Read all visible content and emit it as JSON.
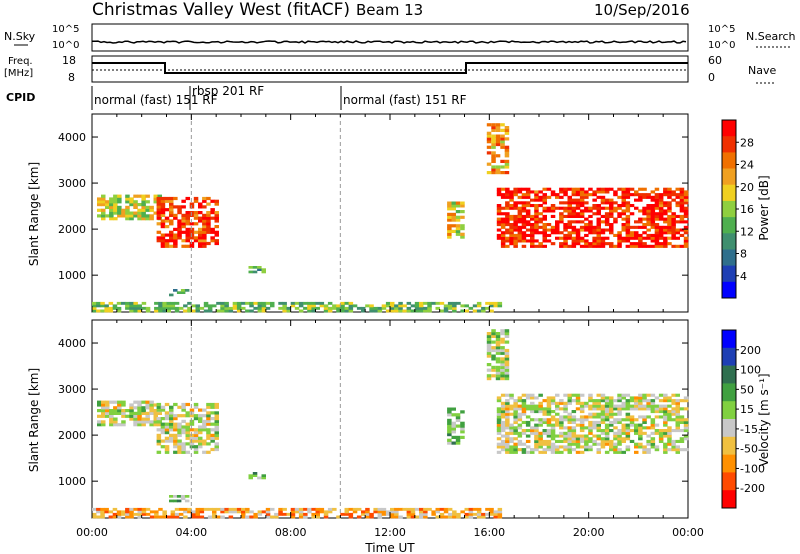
{
  "header": {
    "station": "Christmas Valley West (fitACF)",
    "beam": "Beam 13",
    "date": "10/Sep/2016"
  },
  "noise_panel": {
    "left_label": "N.Sky",
    "right_label": "N.Search",
    "left_ticks": [
      "10^5",
      "10^0"
    ],
    "right_ticks": [
      "10^5",
      "10^0"
    ]
  },
  "freq_panel": {
    "left_label_top": "Freq.",
    "left_label_bottom": "[MHz]",
    "right_label": "Nave",
    "left_ticks": [
      "18",
      "8"
    ],
    "right_ticks": [
      "60",
      "0"
    ]
  },
  "cpid": {
    "label": "CPID",
    "segments": [
      {
        "text": "normal (fast) 151 RF",
        "start_hour": 0
      },
      {
        "text": "rbsp 201 RF",
        "start_hour": 4
      },
      {
        "text": "normal (fast) 151 RF",
        "start_hour": 10
      }
    ]
  },
  "chart_data": [
    {
      "type": "heatmap",
      "name": "power",
      "ylabel": "Slant Range [km]",
      "colorbar_label": "Power [dB]",
      "colorbar_ticks": [
        "28",
        "24",
        "20",
        "16",
        "12",
        "8",
        "4"
      ],
      "colors": [
        "#0000ff",
        "#1e3fb4",
        "#2f6f8c",
        "#3f8f6f",
        "#4faf4f",
        "#8fcf3f",
        "#f0d020",
        "#f0a020",
        "#f07000",
        "#f03000",
        "#ff0000"
      ],
      "xlim_hours": [
        0,
        24
      ],
      "ylim_km": [
        200,
        4500
      ],
      "yticks": [
        1000,
        2000,
        3000,
        4000
      ],
      "regions": [
        {
          "t": [
            0.2,
            2.8
          ],
          "r": [
            2200,
            2750
          ],
          "level": 0.55
        },
        {
          "t": [
            2.6,
            5.1
          ],
          "r": [
            1600,
            2700
          ],
          "level": 0.85
        },
        {
          "t": [
            6.3,
            7.0
          ],
          "r": [
            1050,
            1200
          ],
          "level": 0.4
        },
        {
          "t": [
            3.1,
            3.9
          ],
          "r": [
            550,
            700
          ],
          "level": 0.35
        },
        {
          "t": [
            14.3,
            15.0
          ],
          "r": [
            1800,
            2600
          ],
          "level": 0.6
        },
        {
          "t": [
            15.9,
            16.8
          ],
          "r": [
            3200,
            4300
          ],
          "level": 0.7
        },
        {
          "t": [
            16.3,
            24
          ],
          "r": [
            1600,
            2900
          ],
          "level": 0.9
        },
        {
          "t": [
            0,
            16.5
          ],
          "r": [
            200,
            420
          ],
          "level": 0.45
        }
      ]
    },
    {
      "type": "heatmap",
      "name": "velocity",
      "ylabel": "Slant Range [km]",
      "colorbar_label": "Velocity [m s⁻¹]",
      "colorbar_ticks": [
        "200",
        "100",
        "50",
        "15",
        "-15",
        "-50",
        "-100",
        "-200"
      ],
      "colors": [
        "#ff0000",
        "#ff4a00",
        "#ff9000",
        "#f0c040",
        "#c8c8c8",
        "#80d040",
        "#40a040",
        "#2f6f4f",
        "#1e3fb4",
        "#0000ff"
      ],
      "xlim_hours": [
        0,
        24
      ],
      "ylim_km": [
        200,
        4500
      ],
      "yticks": [
        1000,
        2000,
        3000,
        4000
      ],
      "xticks": [
        "00:00",
        "04:00",
        "08:00",
        "12:00",
        "16:00",
        "20:00",
        "00:00"
      ],
      "xlabel": "Time UT",
      "regions": [
        {
          "t": [
            0.2,
            2.8
          ],
          "r": [
            2200,
            2750
          ],
          "level": 0.45
        },
        {
          "t": [
            2.6,
            5.1
          ],
          "r": [
            1600,
            2700
          ],
          "level": 0.45
        },
        {
          "t": [
            6.3,
            7.0
          ],
          "r": [
            1050,
            1200
          ],
          "level": 0.6
        },
        {
          "t": [
            3.1,
            3.9
          ],
          "r": [
            550,
            700
          ],
          "level": 0.6
        },
        {
          "t": [
            14.3,
            15.0
          ],
          "r": [
            1800,
            2600
          ],
          "level": 0.6
        },
        {
          "t": [
            15.9,
            16.8
          ],
          "r": [
            3200,
            4300
          ],
          "level": 0.5
        },
        {
          "t": [
            16.3,
            24
          ],
          "r": [
            1600,
            2900
          ],
          "level": 0.45
        },
        {
          "t": [
            0,
            16.5
          ],
          "r": [
            200,
            420
          ],
          "level": 0.3
        }
      ]
    }
  ]
}
